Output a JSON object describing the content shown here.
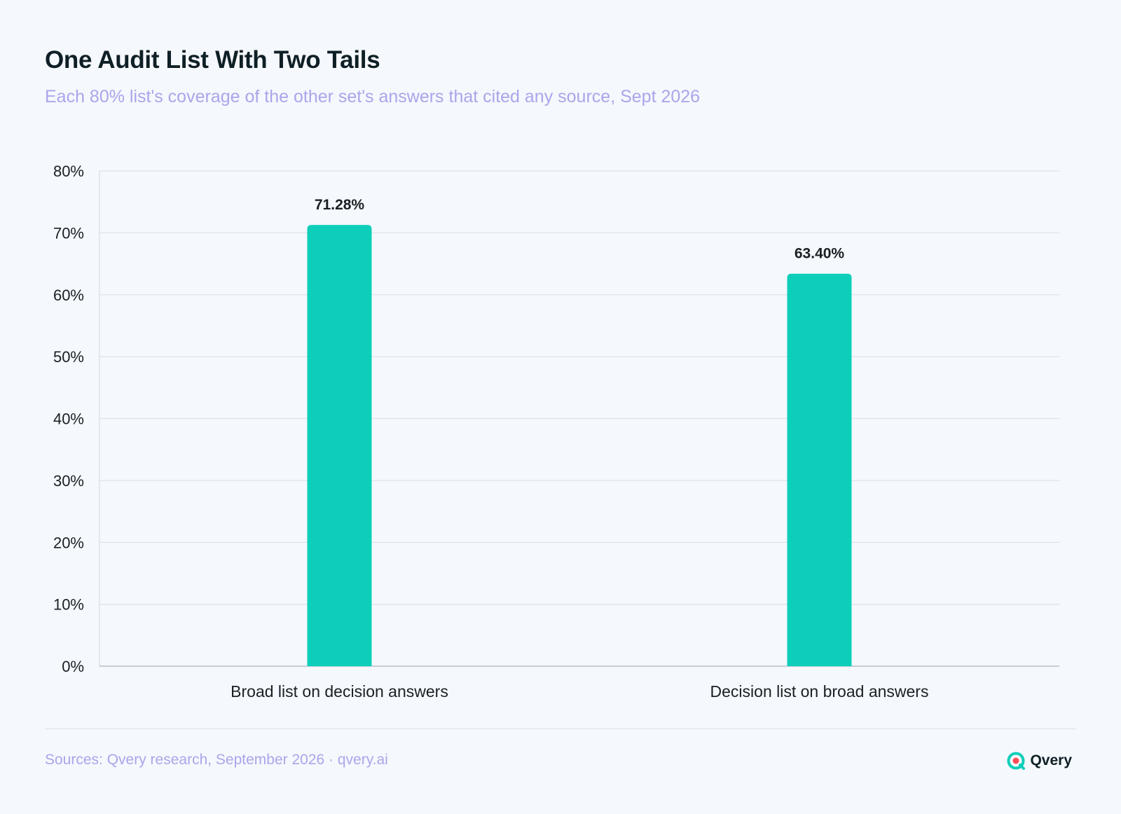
{
  "header": {
    "title": "One Audit List With Two Tails",
    "subtitle": "Each 80% list's coverage of the other set's answers that cited any source, Sept 2026"
  },
  "chart_data": {
    "type": "bar",
    "categories": [
      "Broad list on decision answers",
      "Decision list on broad answers"
    ],
    "values": [
      71.28,
      63.4
    ],
    "data_labels": [
      "71.28%",
      "63.40%"
    ],
    "ylim": [
      0,
      80
    ],
    "yticks": [
      "0%",
      "10%",
      "20%",
      "30%",
      "40%",
      "50%",
      "60%",
      "70%",
      "80%"
    ],
    "grid": true,
    "bar_color": "#0dcfb9"
  },
  "footer": {
    "source": "Sources: Qvery research, September 2026 · qvery.ai",
    "brand": "Qvery",
    "brand_icon": "qvery-logo-icon"
  },
  "colors": {
    "title": "#0f1f26",
    "subtitle": "#a9a6ea",
    "grid": "#dde2ea",
    "axis": "#b9bfc9",
    "bar": "#0dcfb9",
    "brand_accent": "#ff4d5a"
  }
}
